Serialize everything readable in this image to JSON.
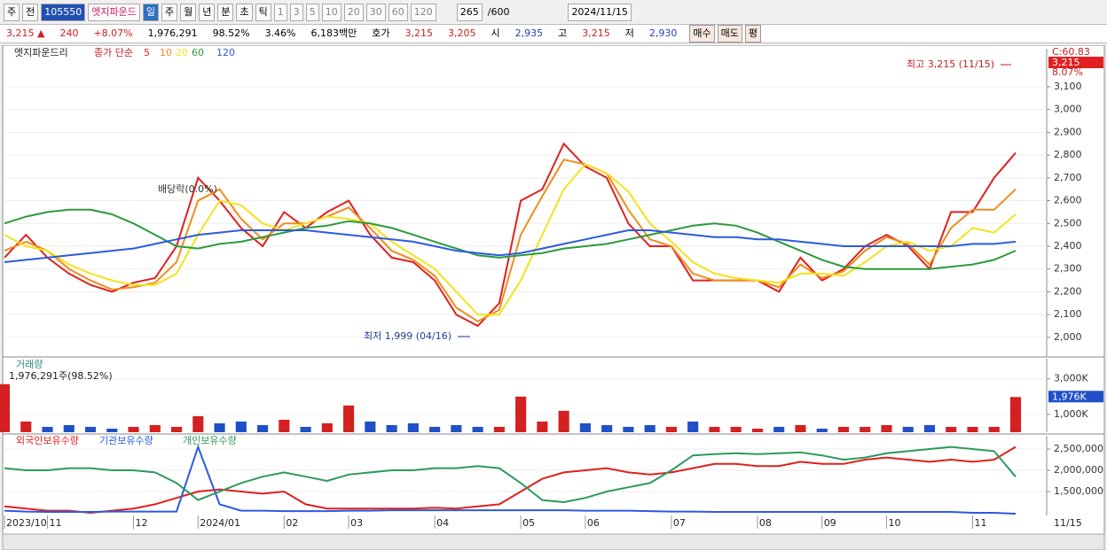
{
  "toolbar": {
    "period": "주",
    "scope": "전",
    "code": "105550",
    "name": "엣지파운드",
    "intervals": [
      "일",
      "주",
      "월",
      "년",
      "분",
      "초",
      "틱"
    ],
    "minutes": [
      "1",
      "3",
      "5",
      "10",
      "20",
      "30",
      "60",
      "120"
    ],
    "count": "265",
    "max_count": "/600",
    "date": "2024/11/15"
  },
  "info_bar": {
    "price": "3,215 ▲",
    "change": "240",
    "change_pct": "+8.07%",
    "volume": "1,976,291",
    "volume_ratio": "98.52%",
    "turnover": "3.46%",
    "amount": "6,183백만",
    "quote_label": "호가",
    "ask": "3,215",
    "bid": "3,205",
    "open_label": "시",
    "open": "2,935",
    "high_label": "고",
    "high": "3,215",
    "low_label": "저",
    "low": "2,930",
    "buy": "매수",
    "sell": "매도",
    "avg": "평"
  },
  "chart_data": [
    {
      "type": "line",
      "title": "엣지파운드리",
      "legend_title": "종가 단순",
      "corner_label": "C:60.83",
      "last_label": "3,215",
      "last_pct": "8.07%",
      "annotations": [
        "최고 3,215 (11/15)",
        "최저 1,999 (04/16)",
        "배당락(0.0%)"
      ],
      "ylim": [
        1914,
        3267
      ],
      "yticks": [
        {
          "value": 2000,
          "label": "2,000"
        },
        {
          "value": 2100,
          "label": "2,100"
        },
        {
          "value": 2200,
          "label": "2,200"
        },
        {
          "value": 2300,
          "label": "2,300"
        },
        {
          "value": 2400,
          "label": "2,400"
        },
        {
          "value": 2500,
          "label": "2,500"
        },
        {
          "value": 2600,
          "label": "2,600"
        },
        {
          "value": 2700,
          "label": "2,700"
        },
        {
          "value": 2800,
          "label": "2,800"
        },
        {
          "value": 2900,
          "label": "2,900"
        },
        {
          "value": 3000,
          "label": "3,000"
        },
        {
          "value": 3100,
          "label": "3,100"
        }
      ],
      "series": [
        {
          "name": "5",
          "color": "#e0201c",
          "values": [
            2350,
            2450,
            2350,
            2280,
            2230,
            2200,
            2240,
            2260,
            2400,
            2700,
            2600,
            2480,
            2400,
            2550,
            2480,
            2550,
            2600,
            2450,
            2350,
            2330,
            2250,
            2100,
            2050,
            2150,
            2600,
            2650,
            2850,
            2750,
            2700,
            2500,
            2400,
            2400,
            2250,
            2250,
            2250,
            2250,
            2200,
            2350,
            2250,
            2300,
            2400,
            2450,
            2400,
            2300,
            2550,
            2550,
            2700,
            2810
          ]
        },
        {
          "name": "10",
          "color": "#f08c1c",
          "values": [
            2380,
            2420,
            2380,
            2300,
            2250,
            2210,
            2220,
            2240,
            2330,
            2600,
            2650,
            2520,
            2430,
            2500,
            2500,
            2530,
            2570,
            2480,
            2380,
            2340,
            2270,
            2130,
            2070,
            2120,
            2450,
            2620,
            2780,
            2760,
            2720,
            2560,
            2430,
            2400,
            2280,
            2250,
            2250,
            2250,
            2220,
            2320,
            2260,
            2290,
            2380,
            2440,
            2410,
            2320,
            2480,
            2560,
            2560,
            2650
          ]
        },
        {
          "name": "20",
          "color": "#f4e21c",
          "values": [
            2450,
            2400,
            2380,
            2320,
            2280,
            2250,
            2230,
            2230,
            2280,
            2450,
            2600,
            2580,
            2500,
            2470,
            2500,
            2530,
            2520,
            2500,
            2420,
            2360,
            2300,
            2200,
            2100,
            2100,
            2250,
            2450,
            2650,
            2760,
            2720,
            2640,
            2500,
            2420,
            2330,
            2280,
            2260,
            2250,
            2240,
            2280,
            2280,
            2270,
            2330,
            2400,
            2420,
            2380,
            2400,
            2480,
            2460,
            2540
          ]
        },
        {
          "name": "60",
          "color": "#2c9a3c",
          "values": [
            2500,
            2530,
            2550,
            2560,
            2560,
            2540,
            2500,
            2450,
            2400,
            2390,
            2410,
            2420,
            2440,
            2460,
            2480,
            2490,
            2510,
            2500,
            2480,
            2450,
            2420,
            2390,
            2360,
            2350,
            2360,
            2370,
            2390,
            2400,
            2410,
            2430,
            2450,
            2470,
            2490,
            2500,
            2490,
            2460,
            2420,
            2380,
            2340,
            2310,
            2300,
            2300,
            2300,
            2300,
            2310,
            2320,
            2340,
            2380
          ]
        },
        {
          "name": "120",
          "color": "#2c5ae0",
          "values": [
            2330,
            2340,
            2350,
            2360,
            2370,
            2380,
            2390,
            2410,
            2430,
            2450,
            2460,
            2470,
            2470,
            2470,
            2470,
            2460,
            2450,
            2440,
            2430,
            2420,
            2400,
            2380,
            2370,
            2360,
            2370,
            2390,
            2410,
            2430,
            2450,
            2470,
            2470,
            2460,
            2450,
            2440,
            2440,
            2430,
            2430,
            2420,
            2410,
            2400,
            2400,
            2400,
            2400,
            2400,
            2400,
            2410,
            2410,
            2420
          ]
        }
      ]
    },
    {
      "type": "bar",
      "title": "거래량",
      "subtitle": "1,976,291주(98.52%)",
      "current_label": "1,976K",
      "current_pct": "98.52%",
      "up_color": "#d42020",
      "down_color": "#2050c8",
      "ylim": [
        0,
        4130
      ],
      "yticks": [
        {
          "value": 1000,
          "label": "1,000K"
        },
        {
          "value": 3000,
          "label": "3,000K"
        }
      ],
      "values": [
        2700,
        600,
        300,
        400,
        300,
        200,
        300,
        400,
        300,
        900,
        500,
        600,
        400,
        700,
        300,
        500,
        1500,
        600,
        400,
        500,
        300,
        400,
        300,
        300,
        2000,
        600,
        1200,
        500,
        400,
        300,
        400,
        300,
        600,
        300,
        300,
        200,
        300,
        400,
        200,
        300,
        300,
        400,
        300,
        400,
        300,
        300,
        300,
        1976
      ]
    },
    {
      "type": "line",
      "date_label": "11/15",
      "categories": [
        "2023/10",
        null,
        "11",
        null,
        null,
        null,
        "12",
        null,
        null,
        "2024/01",
        null,
        null,
        null,
        "02",
        null,
        null,
        "03",
        null,
        null,
        null,
        "04",
        null,
        null,
        null,
        "05",
        null,
        null,
        "06",
        null,
        null,
        null,
        "07",
        null,
        null,
        null,
        "08",
        null,
        null,
        "09",
        null,
        null,
        "10",
        null,
        null,
        null,
        "11",
        null,
        null
      ],
      "ylim": [
        937500,
        2812500
      ],
      "yticks": [
        {
          "value": 1500000,
          "label": "1,500,000"
        },
        {
          "value": 2000000,
          "label": "2,000,000"
        },
        {
          "value": 2500000,
          "label": "2,500,000"
        }
      ],
      "series": [
        {
          "name": "외국인보유수량",
          "color": "#e0201c",
          "values": [
            1150000,
            1100000,
            1050000,
            1050000,
            1000000,
            1050000,
            1100000,
            1200000,
            1350000,
            1500000,
            1550000,
            1500000,
            1450000,
            1500000,
            1200000,
            1100000,
            1100000,
            1100000,
            1100000,
            1100000,
            1120000,
            1100000,
            1150000,
            1200000,
            1500000,
            1800000,
            1950000,
            2000000,
            2050000,
            1950000,
            1900000,
            1950000,
            2050000,
            2150000,
            2150000,
            2100000,
            2100000,
            2200000,
            2150000,
            2150000,
            2250000,
            2300000,
            2250000,
            2200000,
            2250000,
            2200000,
            2250000,
            2550000
          ]
        },
        {
          "name": "기관보유수량",
          "color": "#2c5ae0",
          "values": [
            1050000,
            1030000,
            1020000,
            1020000,
            1020000,
            1030000,
            1030000,
            1030000,
            1030000,
            2550000,
            1200000,
            1050000,
            1050000,
            1040000,
            1040000,
            1040000,
            1050000,
            1050000,
            1060000,
            1060000,
            1060000,
            1060000,
            1060000,
            1060000,
            1060000,
            1060000,
            1060000,
            1050000,
            1050000,
            1050000,
            1040000,
            1030000,
            1030000,
            1020000,
            1020000,
            1020000,
            1020000,
            1020000,
            1020000,
            1020000,
            1020000,
            1020000,
            1020000,
            1020000,
            1020000,
            1000000,
            1000000,
            980000
          ]
        },
        {
          "name": "개인보유수량",
          "color": "#2c9a5c",
          "values": [
            2050000,
            2000000,
            2000000,
            2050000,
            2050000,
            2000000,
            2000000,
            1950000,
            1700000,
            1300000,
            1500000,
            1700000,
            1850000,
            1950000,
            1850000,
            1750000,
            1900000,
            1950000,
            2000000,
            2000000,
            2050000,
            2050000,
            2100000,
            2050000,
            1700000,
            1300000,
            1250000,
            1350000,
            1500000,
            1600000,
            1700000,
            2000000,
            2350000,
            2380000,
            2400000,
            2380000,
            2400000,
            2420000,
            2350000,
            2250000,
            2300000,
            2400000,
            2450000,
            2500000,
            2550000,
            2500000,
            2450000,
            1850000
          ]
        }
      ]
    }
  ]
}
